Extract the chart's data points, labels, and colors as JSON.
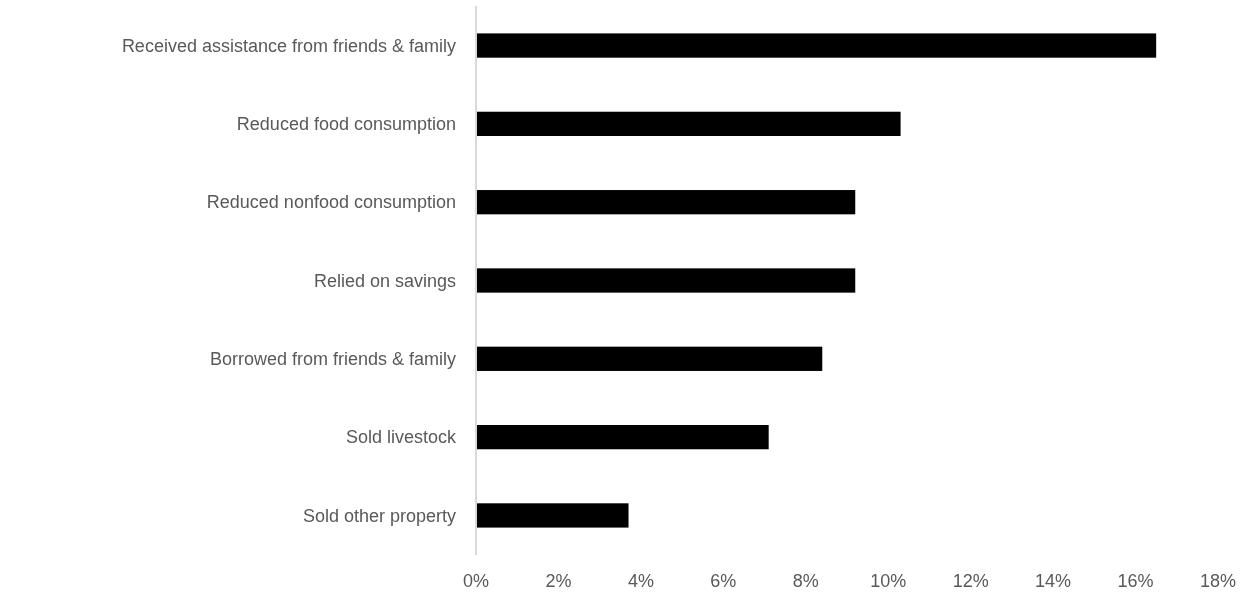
{
  "chart_data": {
    "type": "bar",
    "orientation": "horizontal",
    "categories": [
      "Received assistance from friends & family",
      "Reduced food consumption",
      "Reduced nonfood consumption",
      "Relied on savings",
      "Borrowed from friends & family",
      "Sold livestock",
      "Sold other property"
    ],
    "values": [
      16.5,
      10.3,
      9.2,
      9.2,
      8.4,
      7.1,
      3.7
    ],
    "color": "#000000",
    "xlim": [
      0,
      18
    ],
    "xticks": [
      {
        "value": 0,
        "label": "0%"
      },
      {
        "value": 2,
        "label": "2%"
      },
      {
        "value": 4,
        "label": "4%"
      },
      {
        "value": 6,
        "label": "6%"
      },
      {
        "value": 8,
        "label": "8%"
      },
      {
        "value": 10,
        "label": "10%"
      },
      {
        "value": 12,
        "label": "12%"
      },
      {
        "value": 14,
        "label": "14%"
      },
      {
        "value": 16,
        "label": "16%"
      },
      {
        "value": 18,
        "label": "18%"
      }
    ],
    "grid": false
  }
}
